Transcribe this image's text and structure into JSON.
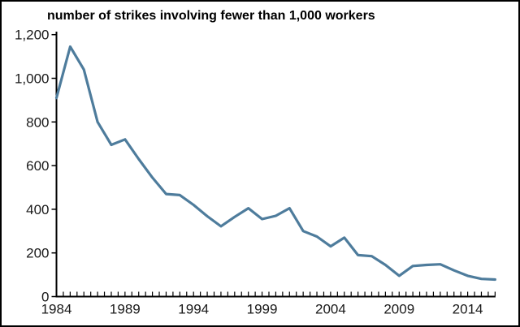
{
  "chart_data": {
    "type": "line",
    "title": "number of strikes involving fewer than 1,000 workers",
    "xlabel": "",
    "ylabel": "",
    "x": [
      1984,
      1985,
      1986,
      1987,
      1988,
      1989,
      1990,
      1991,
      1992,
      1993,
      1994,
      1995,
      1996,
      1997,
      1998,
      1999,
      2000,
      2001,
      2002,
      2003,
      2004,
      2005,
      2006,
      2007,
      2008,
      2009,
      2010,
      2011,
      2012,
      2013,
      2014,
      2015,
      2016
    ],
    "series": [
      {
        "name": "number of strikes involving fewer than 1,000 workers",
        "values": [
          910,
          1145,
          1040,
          800,
          695,
          720,
          630,
          545,
          470,
          465,
          420,
          368,
          322,
          365,
          405,
          355,
          370,
          405,
          300,
          275,
          230,
          270,
          190,
          185,
          145,
          95,
          140,
          145,
          148,
          120,
          95,
          81,
          78
        ]
      }
    ],
    "xlim": [
      1984,
      2016
    ],
    "ylim": [
      0,
      1200
    ],
    "y_ticks": [
      0,
      200,
      400,
      600,
      800,
      1000,
      1200
    ],
    "y_tick_labels": [
      "0",
      "200",
      "400",
      "600",
      "800",
      "1,000",
      "1,200"
    ],
    "x_tick_years": [
      1984,
      1989,
      1994,
      1999,
      2004,
      2009,
      2014
    ],
    "x_tick_labels": [
      "1984",
      "1989",
      "1994",
      "1999",
      "2004",
      "2009",
      "2014"
    ],
    "minor_x_tick_interval_years": 0.5,
    "grid": false,
    "legend_position": "none",
    "line_color": "#4e7c9c",
    "axis_color": "#000000",
    "text_color": "#000000",
    "background_color": "#ffffff",
    "border_color": "#000000"
  }
}
